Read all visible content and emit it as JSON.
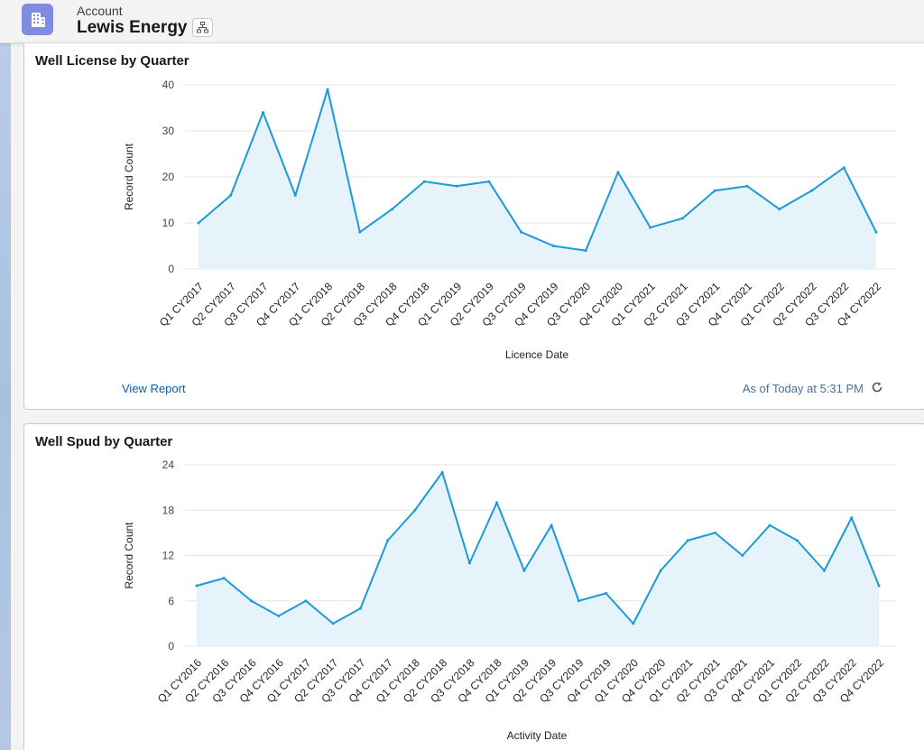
{
  "header": {
    "object_type": "Account",
    "record_name": "Lewis Energy",
    "icon": "building-icon",
    "hierarchy_icon": "hierarchy-icon",
    "icon_color": "#7f8de1"
  },
  "colors": {
    "line": "#1b9ad8",
    "area": "#e6f3fb",
    "grid": "#e5e5e5",
    "link": "#0b5cab"
  },
  "card1": {
    "title": "Well License by Quarter",
    "view_report": "View Report",
    "as_of": "As of Today at 5:31 PM",
    "refresh_icon": "refresh-icon"
  },
  "card2": {
    "title": "Well Spud by Quarter"
  },
  "chart_data": [
    {
      "type": "area",
      "title": "Well License by Quarter",
      "xlabel": "Licence Date",
      "ylabel": "Record Count",
      "ylim": [
        0,
        40
      ],
      "yticks": [
        0,
        10,
        20,
        30,
        40
      ],
      "grid": true,
      "categories": [
        "Q1 CY2017",
        "Q2 CY2017",
        "Q3 CY2017",
        "Q4 CY2017",
        "Q1 CY2018",
        "Q2 CY2018",
        "Q3 CY2018",
        "Q4 CY2018",
        "Q1 CY2019",
        "Q2 CY2019",
        "Q3 CY2019",
        "Q4 CY2019",
        "Q3 CY2020",
        "Q4 CY2020",
        "Q1 CY2021",
        "Q2 CY2021",
        "Q3 CY2021",
        "Q4 CY2021",
        "Q1 CY2022",
        "Q2 CY2022",
        "Q3 CY2022",
        "Q4 CY2022"
      ],
      "values": [
        10,
        16,
        34,
        16,
        39,
        8,
        13,
        19,
        18,
        19,
        8,
        5,
        4,
        21,
        9,
        11,
        17,
        18,
        13,
        17,
        22,
        8
      ]
    },
    {
      "type": "area",
      "title": "Well Spud by Quarter",
      "xlabel": "Activity Date",
      "ylabel": "Record Count",
      "ylim": [
        0,
        24
      ],
      "yticks": [
        0,
        6,
        12,
        18,
        24
      ],
      "grid": true,
      "categories": [
        "Q1 CY2016",
        "Q2 CY2016",
        "Q3 CY2016",
        "Q4 CY2016",
        "Q1 CY2017",
        "Q2 CY2017",
        "Q3 CY2017",
        "Q4 CY2017",
        "Q1 CY2018",
        "Q2 CY2018",
        "Q3 CY2018",
        "Q4 CY2018",
        "Q1 CY2019",
        "Q2 CY2019",
        "Q3 CY2019",
        "Q4 CY2019",
        "Q1 CY2020",
        "Q4 CY2020",
        "Q1 CY2021",
        "Q2 CY2021",
        "Q3 CY2021",
        "Q4 CY2021",
        "Q1 CY2022",
        "Q2 CY2022",
        "Q3 CY2022",
        "Q4 CY2022"
      ],
      "values": [
        8,
        9,
        6,
        4,
        6,
        3,
        5,
        14,
        18,
        23,
        11,
        19,
        10,
        16,
        6,
        7,
        3,
        10,
        14,
        15,
        12,
        16,
        14,
        10,
        17,
        8
      ]
    }
  ]
}
